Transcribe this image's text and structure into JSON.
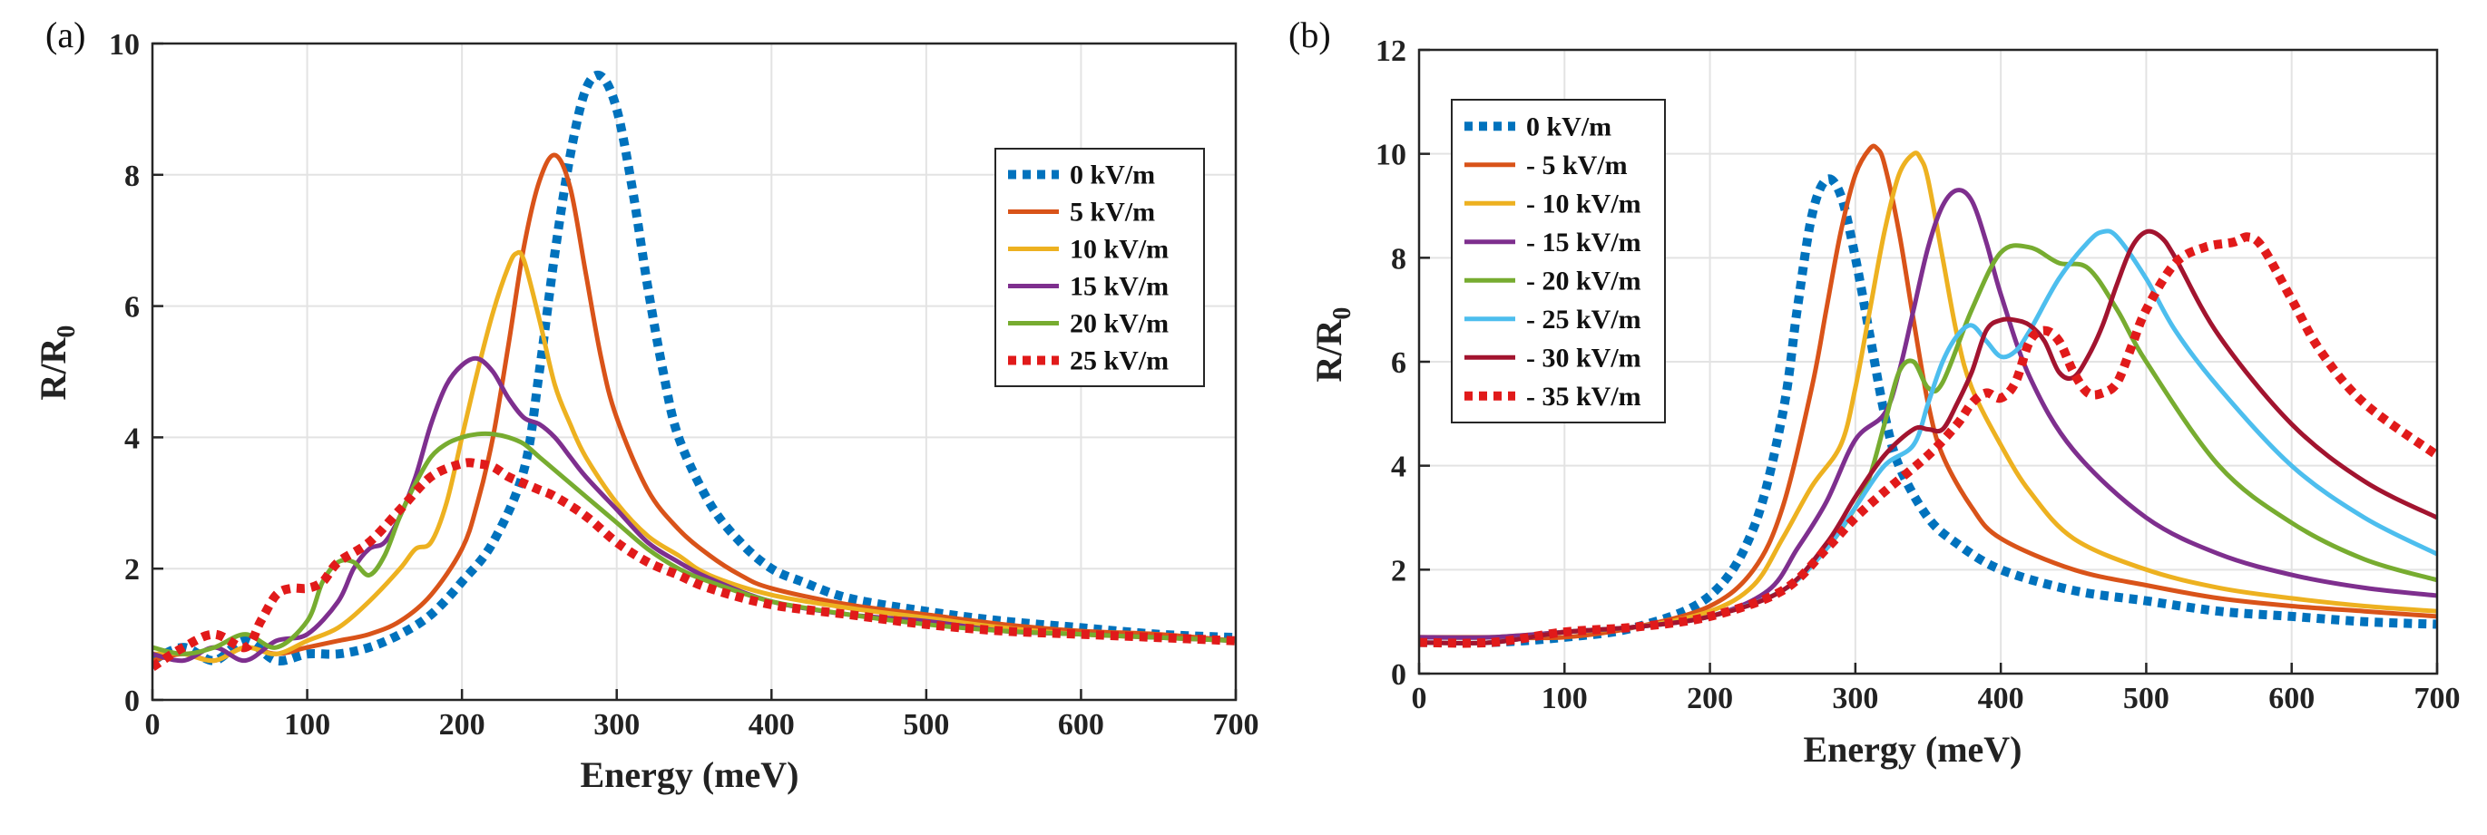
{
  "chart_data": [
    {
      "type": "line",
      "panel_label": "(a)",
      "xlabel": "Energy (meV)",
      "ylabel_main": "R/R",
      "ylabel_sub": "0",
      "xlim": [
        0,
        700
      ],
      "ylim": [
        0,
        10
      ],
      "xticks": [
        0,
        100,
        200,
        300,
        400,
        500,
        600,
        700
      ],
      "yticks": [
        0,
        2,
        4,
        6,
        8,
        10
      ],
      "grid": true,
      "legend_position": "top-right",
      "series": [
        {
          "name": "0 kV/m",
          "color": "#0072BD",
          "style": "dotted",
          "x": [
            0,
            20,
            40,
            60,
            80,
            100,
            120,
            140,
            160,
            180,
            200,
            220,
            240,
            250,
            260,
            270,
            280,
            290,
            300,
            310,
            320,
            330,
            340,
            360,
            380,
            400,
            420,
            450,
            500,
            550,
            600,
            650,
            700
          ],
          "y": [
            0.6,
            0.8,
            0.6,
            0.9,
            0.6,
            0.7,
            0.7,
            0.8,
            1.0,
            1.3,
            1.8,
            2.4,
            3.5,
            5.0,
            6.8,
            8.3,
            9.3,
            9.5,
            9.0,
            7.8,
            6.3,
            5.0,
            4.0,
            3.0,
            2.4,
            2.0,
            1.8,
            1.55,
            1.35,
            1.2,
            1.1,
            1.0,
            0.95
          ]
        },
        {
          "name": "5 kV/m",
          "color": "#D95319",
          "style": "solid",
          "x": [
            0,
            20,
            40,
            60,
            80,
            100,
            120,
            140,
            160,
            180,
            200,
            210,
            220,
            230,
            240,
            250,
            260,
            270,
            280,
            290,
            300,
            320,
            340,
            360,
            380,
            400,
            450,
            500,
            550,
            600,
            650,
            700
          ],
          "y": [
            0.6,
            0.7,
            0.6,
            0.8,
            0.7,
            0.8,
            0.9,
            1.0,
            1.2,
            1.6,
            2.3,
            3.0,
            4.0,
            5.4,
            6.9,
            7.9,
            8.3,
            7.8,
            6.5,
            5.2,
            4.3,
            3.2,
            2.6,
            2.2,
            1.9,
            1.7,
            1.45,
            1.3,
            1.15,
            1.05,
            1.0,
            0.9
          ]
        },
        {
          "name": "10 kV/m",
          "color": "#EDB120",
          "style": "solid",
          "x": [
            0,
            20,
            40,
            60,
            80,
            100,
            120,
            140,
            160,
            170,
            180,
            190,
            200,
            210,
            220,
            230,
            235,
            240,
            250,
            260,
            270,
            280,
            300,
            320,
            340,
            360,
            400,
            450,
            500,
            550,
            600,
            650,
            700
          ],
          "y": [
            0.7,
            0.7,
            0.6,
            0.8,
            0.7,
            0.9,
            1.1,
            1.5,
            2.0,
            2.3,
            2.4,
            3.0,
            4.0,
            5.0,
            5.9,
            6.6,
            6.8,
            6.7,
            5.8,
            4.8,
            4.2,
            3.7,
            3.0,
            2.5,
            2.2,
            1.9,
            1.6,
            1.4,
            1.25,
            1.1,
            1.0,
            0.95,
            0.9
          ]
        },
        {
          "name": "15 kV/m",
          "color": "#7E2F8E",
          "style": "solid",
          "x": [
            0,
            20,
            40,
            60,
            80,
            100,
            120,
            130,
            140,
            150,
            160,
            170,
            180,
            190,
            200,
            210,
            220,
            230,
            240,
            250,
            260,
            270,
            280,
            300,
            320,
            340,
            360,
            400,
            450,
            500,
            550,
            600,
            650,
            700
          ],
          "y": [
            0.7,
            0.6,
            0.8,
            0.6,
            0.9,
            1.0,
            1.5,
            2.0,
            2.3,
            2.4,
            2.8,
            3.4,
            4.2,
            4.8,
            5.1,
            5.2,
            5.0,
            4.6,
            4.3,
            4.2,
            4.0,
            3.7,
            3.4,
            2.9,
            2.4,
            2.1,
            1.85,
            1.5,
            1.3,
            1.2,
            1.05,
            1.0,
            0.95,
            0.9
          ]
        },
        {
          "name": "20 kV/m",
          "color": "#77AC30",
          "style": "solid",
          "x": [
            0,
            20,
            40,
            60,
            80,
            100,
            110,
            120,
            130,
            140,
            150,
            160,
            170,
            180,
            190,
            200,
            210,
            220,
            230,
            240,
            250,
            260,
            280,
            300,
            320,
            340,
            360,
            400,
            450,
            500,
            550,
            600,
            650,
            700
          ],
          "y": [
            0.8,
            0.7,
            0.8,
            1.0,
            0.8,
            1.2,
            1.8,
            2.1,
            2.1,
            1.9,
            2.2,
            2.8,
            3.3,
            3.7,
            3.9,
            4.0,
            4.05,
            4.05,
            4.0,
            3.9,
            3.7,
            3.5,
            3.1,
            2.7,
            2.3,
            2.0,
            1.8,
            1.5,
            1.3,
            1.15,
            1.05,
            1.0,
            0.95,
            0.9
          ]
        },
        {
          "name": "25 kV/m",
          "color": "#E11A1A",
          "style": "dotted",
          "x": [
            0,
            20,
            40,
            60,
            70,
            80,
            90,
            100,
            110,
            120,
            140,
            160,
            180,
            200,
            210,
            220,
            230,
            240,
            250,
            260,
            280,
            300,
            320,
            340,
            360,
            400,
            450,
            500,
            550,
            600,
            650,
            700
          ],
          "y": [
            0.5,
            0.8,
            1.0,
            0.8,
            1.2,
            1.6,
            1.7,
            1.7,
            1.8,
            2.1,
            2.4,
            2.9,
            3.4,
            3.6,
            3.6,
            3.55,
            3.4,
            3.3,
            3.2,
            3.1,
            2.8,
            2.4,
            2.1,
            1.9,
            1.7,
            1.45,
            1.3,
            1.15,
            1.05,
            1.0,
            0.95,
            0.9
          ]
        }
      ]
    },
    {
      "type": "line",
      "panel_label": "(b)",
      "xlabel": "Energy (meV)",
      "ylabel_main": "R/R",
      "ylabel_sub": "0",
      "xlim": [
        0,
        700
      ],
      "ylim": [
        0,
        12
      ],
      "xticks": [
        0,
        100,
        200,
        300,
        400,
        500,
        600,
        700
      ],
      "yticks": [
        0,
        2,
        4,
        6,
        8,
        10,
        12
      ],
      "grid": true,
      "legend_position": "top-left",
      "series": [
        {
          "name": "0 kV/m",
          "color": "#0072BD",
          "style": "dotted",
          "x": [
            0,
            50,
            100,
            150,
            200,
            230,
            250,
            260,
            270,
            280,
            290,
            300,
            310,
            320,
            330,
            350,
            370,
            400,
            450,
            500,
            550,
            600,
            650,
            700
          ],
          "y": [
            0.6,
            0.6,
            0.7,
            0.9,
            1.5,
            2.8,
            5.0,
            7.0,
            8.8,
            9.5,
            9.2,
            8.0,
            6.5,
            5.0,
            4.0,
            3.0,
            2.5,
            2.0,
            1.6,
            1.4,
            1.2,
            1.1,
            1.0,
            0.95
          ]
        },
        {
          "name": "- 5 kV/m",
          "color": "#D95319",
          "style": "solid",
          "x": [
            0,
            50,
            100,
            150,
            200,
            230,
            250,
            270,
            280,
            290,
            300,
            310,
            315,
            320,
            330,
            340,
            350,
            360,
            380,
            400,
            450,
            500,
            550,
            600,
            650,
            700
          ],
          "y": [
            0.7,
            0.7,
            0.7,
            0.9,
            1.3,
            2.0,
            3.2,
            5.5,
            7.0,
            8.5,
            9.6,
            10.1,
            10.1,
            9.8,
            8.5,
            6.8,
            5.2,
            4.2,
            3.2,
            2.6,
            2.0,
            1.7,
            1.45,
            1.3,
            1.2,
            1.1
          ]
        },
        {
          "name": "- 10 kV/m",
          "color": "#EDB120",
          "style": "solid",
          "x": [
            0,
            50,
            100,
            150,
            200,
            230,
            250,
            270,
            290,
            300,
            310,
            320,
            330,
            340,
            345,
            350,
            360,
            370,
            380,
            400,
            420,
            450,
            500,
            550,
            600,
            650,
            700
          ],
          "y": [
            0.7,
            0.7,
            0.8,
            0.9,
            1.2,
            1.7,
            2.6,
            3.6,
            4.4,
            5.5,
            7.0,
            8.5,
            9.6,
            10.0,
            9.9,
            9.5,
            8.0,
            6.5,
            5.5,
            4.4,
            3.5,
            2.6,
            2.0,
            1.65,
            1.45,
            1.3,
            1.2
          ]
        },
        {
          "name": "- 15 kV/m",
          "color": "#7E2F8E",
          "style": "solid",
          "x": [
            0,
            50,
            100,
            150,
            200,
            240,
            260,
            280,
            300,
            320,
            330,
            340,
            350,
            360,
            370,
            380,
            390,
            400,
            420,
            450,
            500,
            550,
            600,
            650,
            700
          ],
          "y": [
            0.7,
            0.7,
            0.8,
            0.9,
            1.1,
            1.6,
            2.4,
            3.3,
            4.5,
            5.0,
            5.8,
            7.0,
            8.2,
            9.0,
            9.3,
            9.1,
            8.3,
            7.3,
            5.7,
            4.3,
            3.0,
            2.3,
            1.9,
            1.65,
            1.5
          ]
        },
        {
          "name": "- 20 kV/m",
          "color": "#77AC30",
          "style": "solid",
          "x": [
            0,
            50,
            100,
            150,
            200,
            250,
            280,
            300,
            310,
            320,
            330,
            340,
            350,
            360,
            380,
            400,
            420,
            440,
            460,
            480,
            500,
            550,
            600,
            650,
            700
          ],
          "y": [
            0.6,
            0.6,
            0.8,
            0.9,
            1.1,
            1.6,
            2.4,
            3.2,
            3.8,
            4.8,
            5.8,
            6.0,
            5.5,
            5.6,
            7.0,
            8.1,
            8.2,
            7.9,
            7.8,
            7.0,
            6.0,
            4.0,
            2.9,
            2.2,
            1.8
          ]
        },
        {
          "name": "- 25 kV/m",
          "color": "#4DBEEE",
          "style": "solid",
          "x": [
            0,
            50,
            100,
            150,
            200,
            250,
            280,
            300,
            320,
            340,
            350,
            360,
            370,
            380,
            390,
            400,
            410,
            420,
            440,
            460,
            470,
            480,
            500,
            520,
            550,
            600,
            650,
            700
          ],
          "y": [
            0.6,
            0.6,
            0.8,
            0.9,
            1.1,
            1.6,
            2.4,
            3.2,
            4.0,
            4.4,
            5.2,
            6.0,
            6.5,
            6.7,
            6.4,
            6.1,
            6.2,
            6.6,
            7.6,
            8.3,
            8.5,
            8.4,
            7.6,
            6.6,
            5.5,
            4.0,
            3.0,
            2.3
          ]
        },
        {
          "name": "- 30 kV/m",
          "color": "#A2142F",
          "style": "solid",
          "x": [
            0,
            50,
            100,
            150,
            200,
            250,
            280,
            300,
            320,
            340,
            350,
            360,
            370,
            380,
            390,
            400,
            410,
            420,
            430,
            440,
            450,
            460,
            470,
            480,
            490,
            500,
            510,
            520,
            550,
            600,
            650,
            700
          ],
          "y": [
            0.6,
            0.6,
            0.8,
            0.9,
            1.1,
            1.6,
            2.5,
            3.4,
            4.2,
            4.7,
            4.7,
            4.7,
            5.2,
            5.8,
            6.6,
            6.8,
            6.8,
            6.7,
            6.4,
            5.8,
            5.7,
            6.1,
            6.7,
            7.5,
            8.2,
            8.5,
            8.4,
            8.0,
            6.5,
            4.8,
            3.7,
            3.0
          ]
        },
        {
          "name": "- 35 kV/m",
          "color": "#E11A1A",
          "style": "dotted",
          "x": [
            0,
            50,
            100,
            150,
            200,
            250,
            280,
            300,
            320,
            350,
            370,
            380,
            390,
            400,
            410,
            420,
            430,
            440,
            450,
            460,
            470,
            480,
            490,
            500,
            520,
            540,
            560,
            570,
            580,
            600,
            620,
            650,
            700
          ],
          "y": [
            0.6,
            0.6,
            0.8,
            0.9,
            1.1,
            1.6,
            2.4,
            3.0,
            3.5,
            4.2,
            4.8,
            5.2,
            5.4,
            5.3,
            5.6,
            6.4,
            6.6,
            6.4,
            5.8,
            5.4,
            5.4,
            5.6,
            6.3,
            7.0,
            7.9,
            8.2,
            8.3,
            8.4,
            8.2,
            7.2,
            6.2,
            5.2,
            4.2
          ]
        }
      ]
    }
  ]
}
